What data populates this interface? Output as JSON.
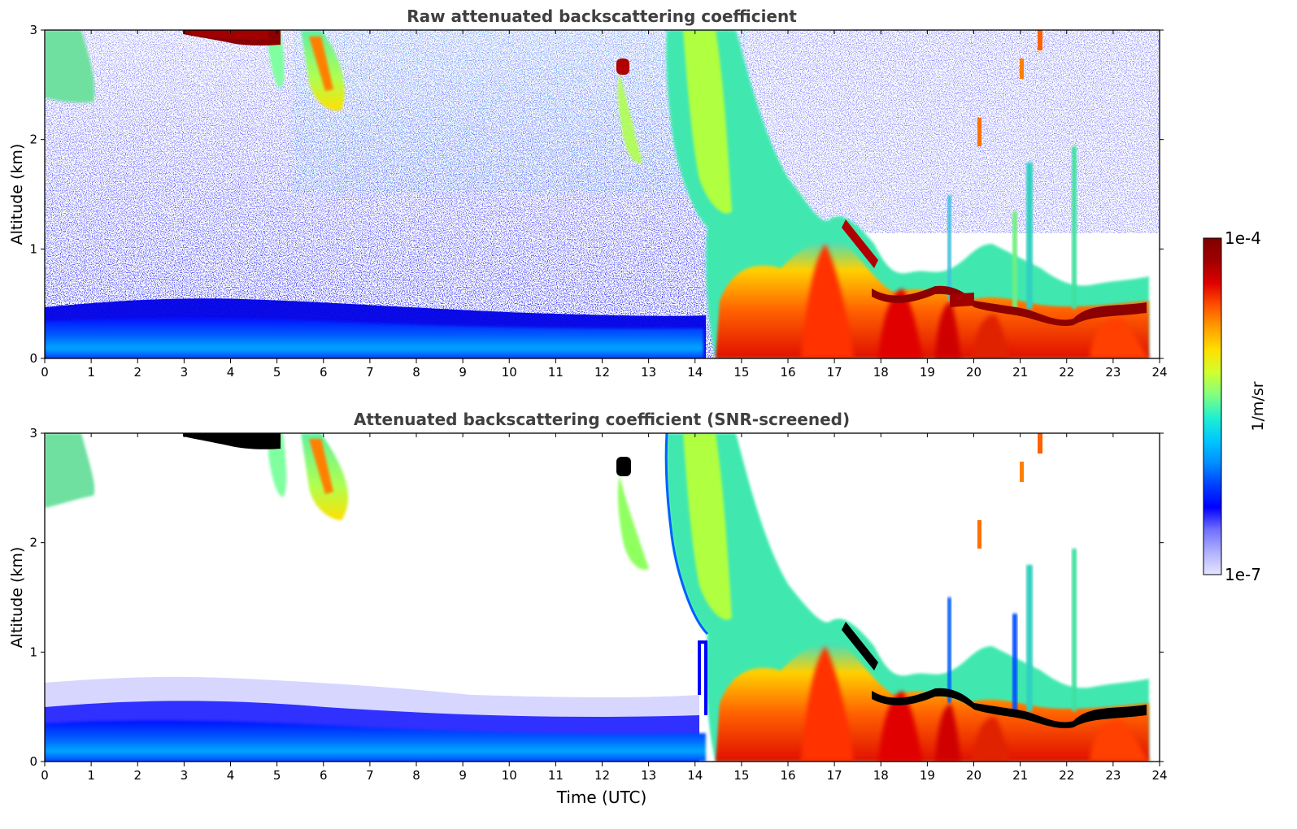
{
  "colors": {
    "noise_blue": "#0000ff",
    "background": "#ffffff",
    "screened_low": "#e0e0ff",
    "very_high": "#000000"
  },
  "colorbar": {
    "max_label": "1e-4",
    "min_label": "1e-7",
    "unit_label": "1/m/sr",
    "stops": [
      "#e6e6ff",
      "#b0b0ff",
      "#7070ff",
      "#0000ff",
      "#0040ff",
      "#0090ff",
      "#00c8ff",
      "#20f0d0",
      "#80ff80",
      "#d0ff30",
      "#ffe000",
      "#ffa000",
      "#ff5000",
      "#e00000",
      "#a00000",
      "#800000"
    ]
  },
  "chart_data": [
    {
      "type": "heatmap",
      "title": "Raw attenuated backscattering coefficient",
      "xlabel": "",
      "ylabel": "Altitude (km)",
      "xlim": [
        0,
        24
      ],
      "ylim": [
        0,
        3
      ],
      "xticks": [
        "0",
        "1",
        "2",
        "3",
        "4",
        "5",
        "6",
        "7",
        "8",
        "9",
        "10",
        "11",
        "12",
        "13",
        "14",
        "15",
        "16",
        "17",
        "18",
        "19",
        "20",
        "21",
        "22",
        "23",
        "24"
      ],
      "yticks": [
        "0",
        "1",
        "2",
        "3"
      ],
      "color_scale": "log",
      "value_range": [
        1e-07,
        0.0001
      ],
      "features": [
        {
          "time_range": [
            0,
            14.5
          ],
          "altitude_top_km": 0.4,
          "level": "low",
          "description_value": 2e-07
        },
        {
          "time_range": [
            14.6,
            23.8
          ],
          "altitude_top_km": 0.5,
          "level": "high",
          "description_value": 3e-05
        },
        {
          "time_range": [
            3,
            5
          ],
          "altitude_km": 2.95,
          "level": "very_high",
          "description_value": 0.0001
        },
        {
          "time_range": [
            17.8,
            23.8
          ],
          "altitude_km": 0.55,
          "level": "very_high",
          "description_value": 0.0001
        }
      ]
    },
    {
      "type": "heatmap",
      "title": "Attenuated backscattering coefficient (SNR-screened)",
      "xlabel": "Time (UTC)",
      "ylabel": "Altitude (km)",
      "xlim": [
        0,
        24
      ],
      "ylim": [
        0,
        3
      ],
      "xticks": [
        "0",
        "1",
        "2",
        "3",
        "4",
        "5",
        "6",
        "7",
        "8",
        "9",
        "10",
        "11",
        "12",
        "13",
        "14",
        "15",
        "16",
        "17",
        "18",
        "19",
        "20",
        "21",
        "22",
        "23",
        "24"
      ],
      "yticks": [
        "0",
        "1",
        "2",
        "3"
      ],
      "color_scale": "log",
      "value_range": [
        1e-07,
        0.0001
      ],
      "features": [
        {
          "time_range": [
            0,
            14.1
          ],
          "altitude_top_km": 0.7,
          "level": "low",
          "description_value": 2e-07
        },
        {
          "time_range": [
            14.6,
            23.8
          ],
          "altitude_top_km": 0.5,
          "level": "high",
          "description_value": 3e-05
        },
        {
          "time_range": [
            17.8,
            23.8
          ],
          "altitude_km": 0.55,
          "level": "very_high",
          "description_value": 0.0001
        }
      ]
    }
  ]
}
